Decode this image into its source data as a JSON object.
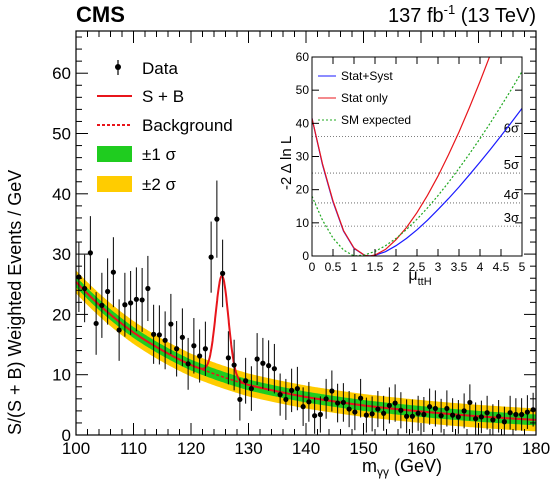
{
  "header": {
    "experiment": "CMS",
    "lumi_value": "137 fb",
    "lumi_exp": "-1",
    "lumi_energy": " (13 TeV)"
  },
  "chart_data": [
    {
      "type": "scatter",
      "xlabel_main": "m",
      "xlabel_sub": "γγ",
      "xlabel_unit": " (GeV)",
      "ylabel": "S/(S + B) Weighted Events / GeV",
      "xlim": [
        100,
        180
      ],
      "ylim": [
        0,
        67
      ],
      "xticks": [
        100,
        110,
        120,
        130,
        140,
        150,
        160,
        170,
        180
      ],
      "yticks": [
        0,
        10,
        20,
        30,
        40,
        50,
        60
      ],
      "legend_position": "top-left",
      "legend": {
        "data": "Data",
        "sb": "S + B",
        "bkg": "Background",
        "band1": "±1 σ",
        "band2": "±2 σ"
      },
      "colors": {
        "data": "#000000",
        "sb": "#e8151b",
        "bkg": "#e8151b",
        "band1": "#1fcc1f",
        "band2": "#ffcc00"
      },
      "background_model": {
        "description_free": true,
        "points": [
          [
            100,
            25.4
          ],
          [
            110,
            17.0
          ],
          [
            120,
            11.6
          ],
          [
            130,
            8.3
          ],
          [
            140,
            6.3
          ],
          [
            150,
            4.9
          ],
          [
            160,
            3.9
          ],
          [
            170,
            3.1
          ],
          [
            180,
            2.5
          ]
        ]
      },
      "signal": {
        "mass": 125.4,
        "width": 1.1,
        "peak_amplitude": 16.7
      },
      "band_1sigma": 0.9,
      "band_2sigma": 1.9,
      "series": [
        {
          "name": "Data",
          "x": [
            100.5,
            101.5,
            102.5,
            103.5,
            104.5,
            105.5,
            106.5,
            107.5,
            108.5,
            109.5,
            110.5,
            111.5,
            112.5,
            113.5,
            114.5,
            115.5,
            116.5,
            117.5,
            118.5,
            119.5,
            120.5,
            121.5,
            122.5,
            123.5,
            124.5,
            125.5,
            126.5,
            127.5,
            128.5,
            129.5,
            130.5,
            131.5,
            132.5,
            133.5,
            134.5,
            135.5,
            136.5,
            137.5,
            138.5,
            139.5,
            140.5,
            141.5,
            142.5,
            143.5,
            144.5,
            145.5,
            146.5,
            147.5,
            148.5,
            149.5,
            150.5,
            151.5,
            152.5,
            153.5,
            154.5,
            155.5,
            156.5,
            157.5,
            158.5,
            159.5,
            160.5,
            161.5,
            162.5,
            163.5,
            164.5,
            165.5,
            166.5,
            167.5,
            168.5,
            169.5,
            170.5,
            171.5,
            172.5,
            173.5,
            174.5,
            175.5,
            176.5,
            177.5,
            178.5,
            179.5
          ],
          "y": [
            26.2,
            24.3,
            30.2,
            18.5,
            21.5,
            23.8,
            27.0,
            17.4,
            21.6,
            21.9,
            22.5,
            22.4,
            24.3,
            16.7,
            16.6,
            15.7,
            18.4,
            14.3,
            16.2,
            11.8,
            14.8,
            13.1,
            14.3,
            29.5,
            35.8,
            26.8,
            12.8,
            11.6,
            5.9,
            9.0,
            7.7,
            12.6,
            11.9,
            11.5,
            11.0,
            6.7,
            5.9,
            7.4,
            7.7,
            4.7,
            5.5,
            3.2,
            3.4,
            6.0,
            7.3,
            5.3,
            5.4,
            4.3,
            3.8,
            6.1,
            3.3,
            3.5,
            4.3,
            3.6,
            4.9,
            5.3,
            4.1,
            3.1,
            3.1,
            3.6,
            3.4,
            4.7,
            4.4,
            3.2,
            4.4,
            3.3,
            3.0,
            4.0,
            5.4,
            2.7,
            3.0,
            3.7,
            2.5,
            3.1,
            2.2,
            3.7,
            3.4,
            3.4,
            3.8,
            4.2
          ],
          "err": [
            5.8,
            5.6,
            6.1,
            5.2,
            5.4,
            5.5,
            5.8,
            5.1,
            5.3,
            5.3,
            5.3,
            5.3,
            5.4,
            4.9,
            4.9,
            4.8,
            5.0,
            4.6,
            4.8,
            4.3,
            4.6,
            4.4,
            4.5,
            5.9,
            6.4,
            5.6,
            4.4,
            4.2,
            3.5,
            3.8,
            3.7,
            4.3,
            4.2,
            4.2,
            4.1,
            3.5,
            3.4,
            3.6,
            3.6,
            3.2,
            3.3,
            3.0,
            3.0,
            3.3,
            3.4,
            3.2,
            3.2,
            3.0,
            3.0,
            3.2,
            2.9,
            2.9,
            3.0,
            2.9,
            3.0,
            3.1,
            3.0,
            2.8,
            2.8,
            2.9,
            2.9,
            3.0,
            3.0,
            2.8,
            3.0,
            2.8,
            2.8,
            2.9,
            3.0,
            2.7,
            2.7,
            2.8,
            2.6,
            2.7,
            2.5,
            2.8,
            2.7,
            2.7,
            2.8,
            2.8
          ]
        }
      ]
    },
    {
      "type": "line",
      "xlabel_main": "μ",
      "xlabel_sub": "ttH",
      "ylabel": "-2 Δ ln L",
      "xlim": [
        0,
        5
      ],
      "ylim": [
        0,
        60
      ],
      "xticks": [
        0,
        0.5,
        1,
        1.5,
        2,
        2.5,
        3,
        3.5,
        4,
        4.5,
        5
      ],
      "xtick_labels": [
        "0",
        "0.5",
        "1",
        "1.5",
        "2",
        "2.5",
        "3",
        "3.5",
        "4",
        "4.5",
        "5"
      ],
      "yticks": [
        0,
        10,
        20,
        30,
        40,
        50,
        60
      ],
      "sigma_lines": [
        {
          "label": "3σ",
          "value": 9
        },
        {
          "label": "4σ",
          "value": 16
        },
        {
          "label": "5σ",
          "value": 25
        },
        {
          "label": "6σ",
          "value": 36
        }
      ],
      "legend_position": "top-left",
      "series": [
        {
          "name": "Stat+Syst",
          "color": "#1a1aff",
          "dash": "",
          "x": [
            0,
            0.25,
            0.5,
            0.75,
            1,
            1.25,
            1.38,
            1.5,
            1.75,
            2,
            2.25,
            2.5,
            2.75,
            3,
            3.25,
            3.5,
            3.75,
            4,
            4.25,
            4.5,
            4.75,
            5
          ],
          "y": [
            41.5,
            27.5,
            16.3,
            7.5,
            2.3,
            0.2,
            0,
            0.2,
            1.3,
            3.1,
            5.3,
            7.9,
            10.8,
            14.0,
            17.3,
            20.8,
            24.5,
            28.3,
            32.2,
            36.2,
            40.3,
            44.5
          ]
        },
        {
          "name": "Stat only",
          "color": "#e8151b",
          "dash": "",
          "x": [
            0,
            0.25,
            0.5,
            0.75,
            1,
            1.25,
            1.38,
            1.5,
            1.75,
            2,
            2.25,
            2.5,
            2.75,
            3,
            3.25,
            3.5,
            3.75,
            4,
            4.25
          ],
          "y": [
            41.5,
            27.8,
            16.6,
            7.7,
            2.4,
            0.2,
            0,
            0.3,
            2.0,
            4.9,
            8.6,
            13.1,
            18.3,
            24.1,
            30.5,
            37.4,
            44.8,
            52.6,
            60.8
          ]
        },
        {
          "name": "SM expected",
          "color": "#1fa81f",
          "dash": "2,2",
          "x": [
            0,
            0.25,
            0.5,
            0.75,
            1,
            1.25,
            1.5,
            1.75,
            2,
            2.25,
            2.5,
            2.75,
            3,
            3.25,
            3.5,
            3.75,
            4,
            4.25,
            4.5,
            4.75,
            5
          ],
          "y": [
            18.0,
            10.8,
            5.4,
            1.8,
            0,
            0.3,
            1.4,
            3.1,
            5.3,
            8.0,
            11.1,
            14.5,
            18.2,
            22.2,
            26.4,
            30.8,
            35.4,
            40.2,
            45.2,
            50.3,
            55.6
          ]
        }
      ]
    }
  ]
}
